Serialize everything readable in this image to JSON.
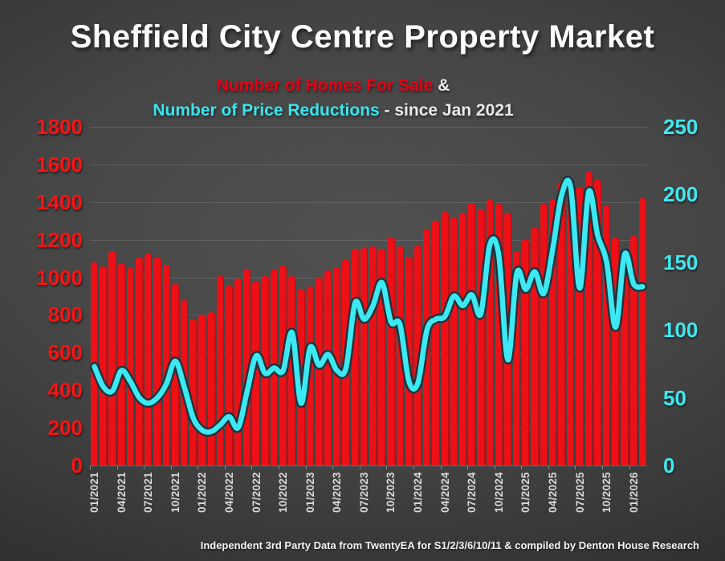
{
  "header": {
    "title": "Sheffield City Centre Property Market",
    "subtitle_series1": "Number of Homes For Sale",
    "subtitle_amp": " &",
    "subtitle_series2": "Number of Price Reductions",
    "subtitle_suffix": " - since Jan 2021"
  },
  "footer": {
    "attribution": "Independent 3rd Party Data from TwentyEA for S1/2/3/6/10/11 & compiled by Denton House Research"
  },
  "colors": {
    "bar_red": "#ed1117",
    "axis_red": "#fe1212",
    "line_cyan": "#3ce9f2",
    "line_outline": "#16343f",
    "axis_cyan": "#3fe8f2",
    "xlabel_gray": "#d9d9d9"
  },
  "chart_data": {
    "type": "bar",
    "title": "Sheffield City Centre Property Market",
    "subtitle": "Number of Homes For Sale & Number of Price Reductions - since Jan 2021",
    "x": [
      "01/2021",
      "02/2021",
      "03/2021",
      "04/2021",
      "05/2021",
      "06/2021",
      "07/2021",
      "08/2021",
      "09/2021",
      "10/2021",
      "11/2021",
      "12/2021",
      "01/2022",
      "02/2022",
      "03/2022",
      "04/2022",
      "05/2022",
      "06/2022",
      "07/2022",
      "08/2022",
      "09/2022",
      "10/2022",
      "11/2022",
      "12/2022",
      "01/2023",
      "02/2023",
      "03/2023",
      "04/2023",
      "05/2023",
      "06/2023",
      "07/2023",
      "08/2023",
      "09/2023",
      "10/2023",
      "11/2023",
      "12/2023",
      "01/2024",
      "02/2024",
      "03/2024",
      "04/2024",
      "05/2024",
      "06/2024",
      "07/2024",
      "08/2024",
      "09/2024",
      "10/2024",
      "11/2024",
      "12/2024",
      "01/2025",
      "02/2025",
      "03/2025",
      "04/2025",
      "05/2025",
      "06/2025",
      "07/2025",
      "08/2025",
      "09/2025",
      "10/2025",
      "11/2025",
      "12/2025",
      "01/2026",
      "02/2026"
    ],
    "x_tick_labels": [
      "01/2021",
      "04/2021",
      "07/2021",
      "10/2021",
      "01/2022",
      "04/2022",
      "07/2022",
      "10/2022",
      "01/2023",
      "04/2023",
      "07/2023",
      "10/2023",
      "01/2024",
      "04/2024",
      "07/2024",
      "10/2024",
      "01/2025",
      "04/2025",
      "07/2025",
      "10/2025",
      "01/2026"
    ],
    "x_tick_every": 3,
    "series": [
      {
        "name": "Number of Homes For Sale",
        "type": "bar",
        "axis": "left",
        "color": "#ed1117",
        "values": [
          1080,
          1060,
          1140,
          1075,
          1050,
          1105,
          1125,
          1105,
          1065,
          965,
          880,
          775,
          800,
          815,
          1005,
          955,
          995,
          1045,
          975,
          1005,
          1040,
          1062,
          1005,
          937,
          951,
          1000,
          1035,
          1052,
          1090,
          1150,
          1155,
          1165,
          1150,
          1210,
          1165,
          1110,
          1168,
          1255,
          1300,
          1350,
          1320,
          1345,
          1395,
          1360,
          1410,
          1390,
          1345,
          1140,
          1205,
          1262,
          1391,
          1412,
          1505,
          1478,
          1480,
          1562,
          1519,
          1384,
          1212,
          1012,
          1220,
          1419
        ]
      },
      {
        "name": "Number of Price Reductions",
        "type": "line",
        "axis": "right",
        "color": "#3ce9f2",
        "values": [
          73,
          58,
          55,
          70,
          62,
          50,
          46,
          50,
          60,
          77,
          58,
          35,
          26,
          25,
          30,
          36,
          28,
          55,
          81,
          68,
          72,
          70,
          98,
          46,
          87,
          74,
          82,
          70,
          72,
          120,
          108,
          118,
          135,
          106,
          104,
          62,
          61,
          100,
          108,
          110,
          125,
          118,
          126,
          112,
          163,
          155,
          78,
          142,
          130,
          143,
          127,
          160,
          200,
          205,
          131,
          202,
          170,
          150,
          102,
          156,
          134,
          132
        ]
      }
    ],
    "left_axis": {
      "min": 0,
      "max": 1800,
      "ticks": [
        1800,
        1600,
        1400,
        1200,
        1000,
        800,
        600,
        400,
        200,
        0
      ],
      "color": "#fe1212"
    },
    "right_axis": {
      "min": 0,
      "max": 250,
      "ticks": [
        250,
        200,
        150,
        100,
        50,
        0
      ],
      "color": "#3fe8f2"
    },
    "grid": true,
    "legend_position": "subtitle"
  }
}
